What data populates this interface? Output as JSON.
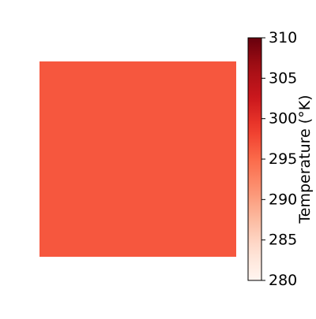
{
  "chart_data": {
    "type": "heatmap",
    "title": "",
    "xlabel": "",
    "ylabel": "",
    "field_value": 296.5,
    "colormap": "Reds",
    "colorbar": {
      "label": "Temperature (°K)",
      "range": [
        280,
        310
      ],
      "ticks": [
        280,
        285,
        290,
        295,
        300,
        305,
        310
      ],
      "tick_labels": [
        "280",
        "285",
        "290",
        "295",
        "300",
        "305",
        "310"
      ]
    }
  }
}
